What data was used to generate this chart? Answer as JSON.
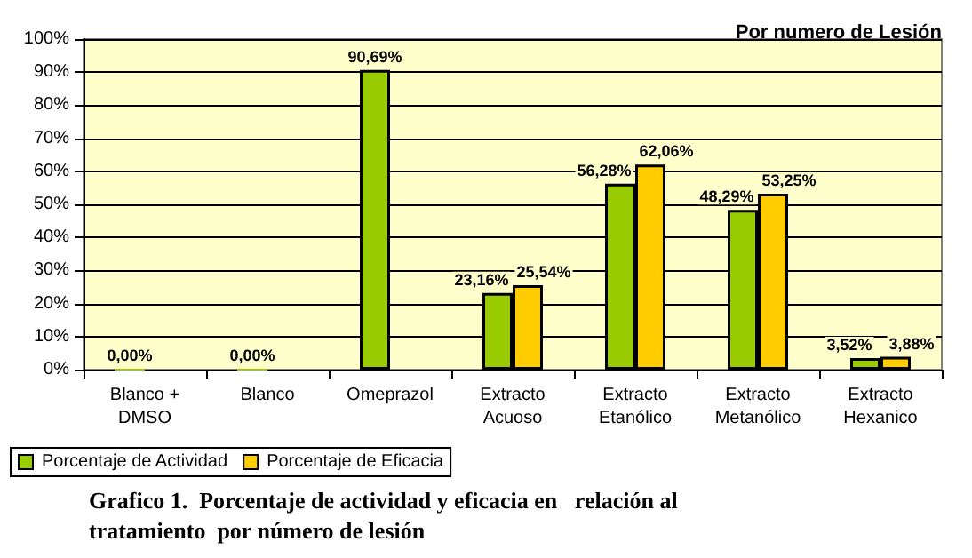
{
  "chart_data": {
    "type": "bar",
    "title": "Grafico 1.  Porcentaje de actividad y eficacia en   relación al\ntratamiento  por número de lesión",
    "subtitle": "Por numero de Lesión",
    "categories": [
      "Blanco +\nDMSO",
      "Blanco",
      "Omeprazol",
      "Extracto\nAcuoso",
      "Extracto\nEtanólico",
      "Extracto\nMetanólico",
      "Extracto\nHexanico"
    ],
    "series": [
      {
        "name": "Porcentaje de Actividad",
        "color": "#99cc00",
        "values": [
          0,
          0,
          90.69,
          23.16,
          56.28,
          48.29,
          3.52
        ],
        "value_labels": [
          "0,00%",
          "0,00%",
          "90,69%",
          "23,16%",
          "56,28%",
          "48,29%",
          "3,52%"
        ]
      },
      {
        "name": "Porcentaje de Eficacia",
        "color": "#ffcc00",
        "values": [
          null,
          null,
          null,
          25.54,
          62.06,
          53.25,
          3.88
        ],
        "value_labels": [
          null,
          null,
          null,
          "25,54%",
          "62,06%",
          "53,25%",
          "3,88%"
        ]
      }
    ],
    "ylim": [
      0,
      100
    ],
    "yticks": [
      {
        "value": 0,
        "label": "0%"
      },
      {
        "value": 10,
        "label": "10%"
      },
      {
        "value": 20,
        "label": "20%"
      },
      {
        "value": 30,
        "label": "30%"
      },
      {
        "value": 40,
        "label": "40%"
      },
      {
        "value": 50,
        "label": "50%"
      },
      {
        "value": 60,
        "label": "60%"
      },
      {
        "value": 70,
        "label": "70%"
      },
      {
        "value": 80,
        "label": "80%"
      },
      {
        "value": 90,
        "label": "90%"
      },
      {
        "value": 100,
        "label": "100%"
      }
    ],
    "grid": "y",
    "legend": "bottom left"
  }
}
